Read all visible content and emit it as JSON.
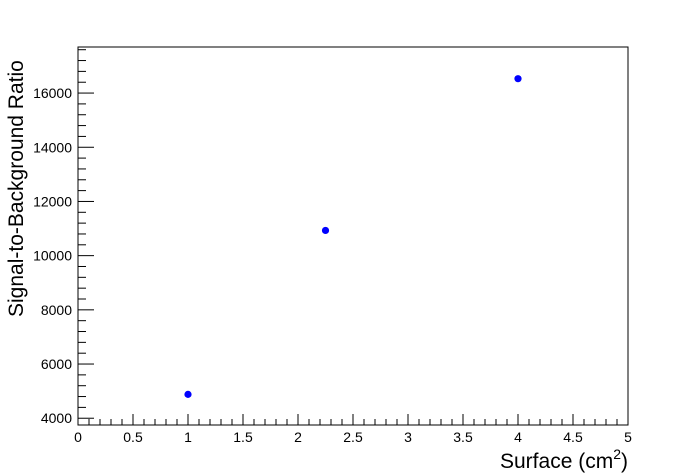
{
  "chart_data": {
    "type": "scatter",
    "title": "",
    "xlabel_main": "Surface (cm",
    "xlabel_sup": "2",
    "xlabel_close": ")",
    "ylabel": "Signal-to-Background Ratio",
    "xlim": [
      0,
      5
    ],
    "ylim": [
      3750,
      17700
    ],
    "x_major_ticks": [
      0,
      0.5,
      1,
      1.5,
      2,
      2.5,
      3,
      3.5,
      4,
      4.5,
      5
    ],
    "x_tick_labels": [
      "0",
      "0.5",
      "1",
      "1.5",
      "2",
      "2.5",
      "3",
      "3.5",
      "4",
      "4.5",
      "5"
    ],
    "y_major_ticks": [
      4000,
      6000,
      8000,
      10000,
      12000,
      14000,
      16000
    ],
    "y_tick_labels": [
      "4000",
      "6000",
      "8000",
      "10000",
      "12000",
      "14000",
      "16000"
    ],
    "grid": false,
    "marker_color": "#0000ff",
    "series": [
      {
        "x": [
          1,
          2.25,
          4
        ],
        "y": [
          4880,
          10930,
          16530
        ]
      }
    ]
  }
}
